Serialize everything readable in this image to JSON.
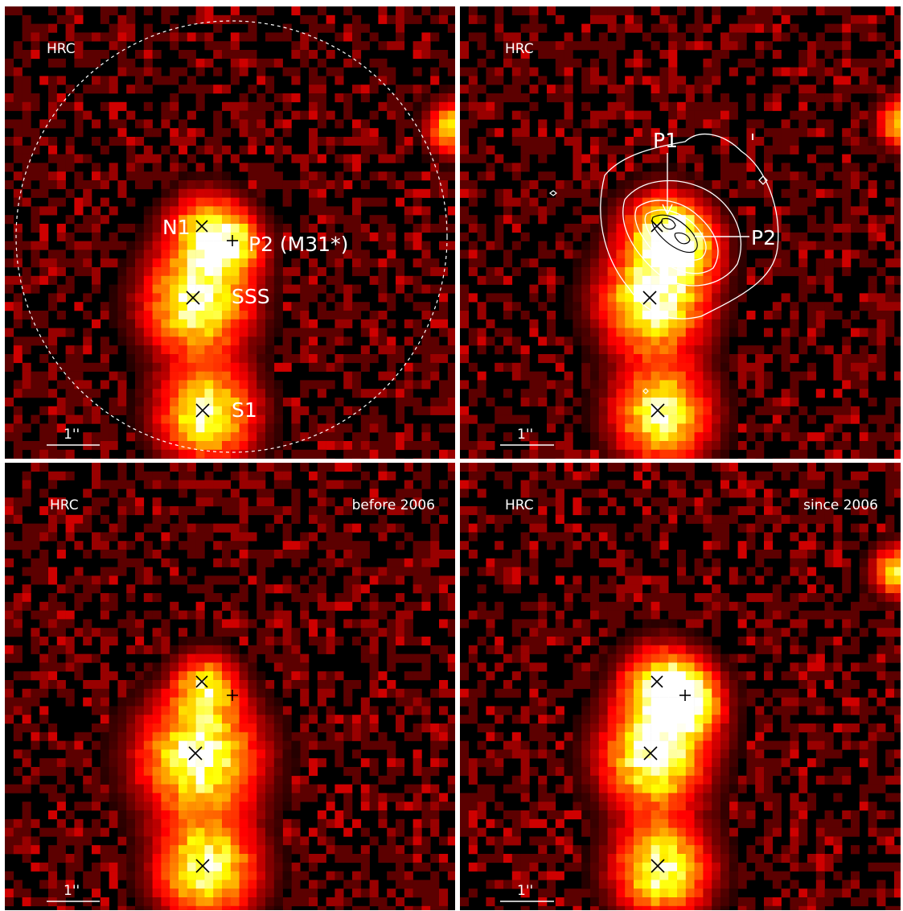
{
  "panels": [
    {
      "instrument": "HRC",
      "epoch": "",
      "scalebar": "1''",
      "labels": {
        "n1": "N1",
        "p2": "P2 (M31*)",
        "sss": "SSS",
        "s1": "S1"
      }
    },
    {
      "instrument": "HRC",
      "epoch": "",
      "scalebar": "1''",
      "labels": {
        "p1": "P1",
        "p2": "P2"
      }
    },
    {
      "instrument": "HRC",
      "epoch": "before 2006",
      "scalebar": "1''"
    },
    {
      "instrument": "HRC",
      "epoch": "since 2006",
      "scalebar": "1''"
    }
  ],
  "colors": {
    "background": "#000000",
    "marker_x": "#000000",
    "contour_outer": "#ffffff",
    "contour_inner": "#000000"
  }
}
